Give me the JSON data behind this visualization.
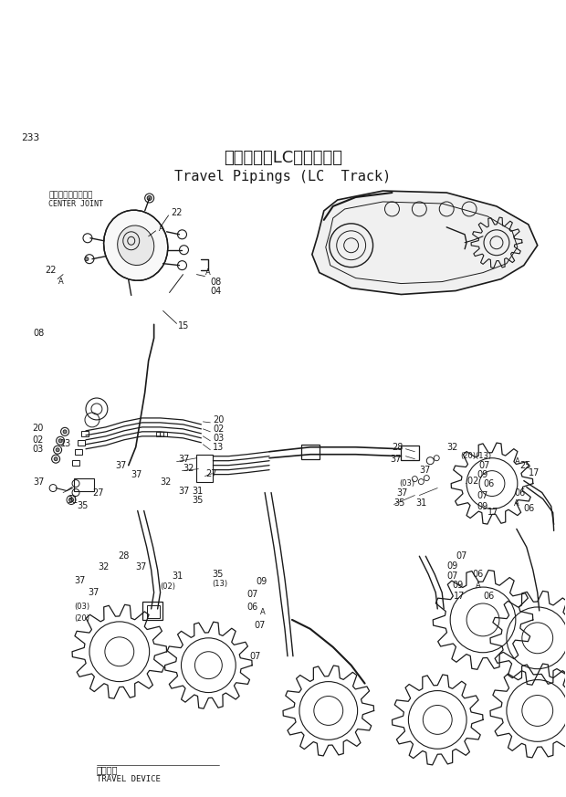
{
  "page_number": "233",
  "title_japanese": "走行配管（LCトラック）",
  "title_english": "Travel Pipings (LC  Track)",
  "background_color": "#ffffff",
  "text_color": "#1a1a1a",
  "fig_width": 6.2,
  "fig_height": 8.73,
  "dpi": 100,
  "center_joint_jp": "センタージョイント",
  "center_joint_en": "CENTER JOINT",
  "travel_device_jp": "走行装置",
  "travel_device_en": "TRAVEL DEVICE"
}
